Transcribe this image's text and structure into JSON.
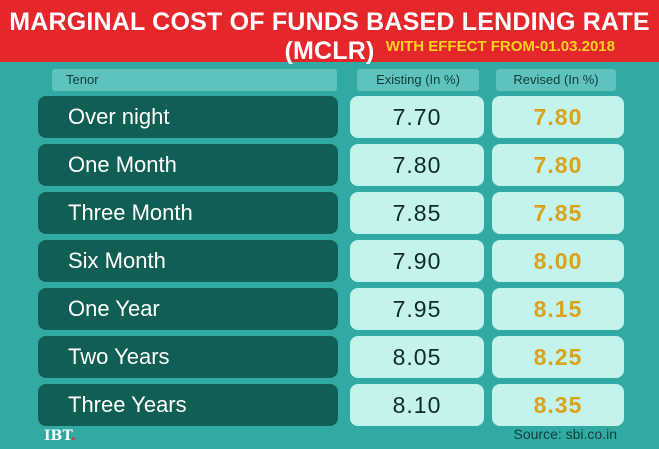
{
  "header": {
    "title": "MARGINAL COST OF FUNDS BASED LENDING RATE (MCLR)",
    "subtitle": "WITH EFFECT FROM-01.03.2018"
  },
  "chart_data": {
    "type": "table",
    "title": "MARGINAL COST OF FUNDS BASED LENDING RATE (MCLR)",
    "subtitle": "WITH EFFECT FROM-01.03.2018",
    "columns": [
      "Tenor",
      "Existing (In %)",
      "Revised (In %)"
    ],
    "rows": [
      {
        "tenor": "Over night",
        "existing": "7.70",
        "revised": "7.80"
      },
      {
        "tenor": "One Month",
        "existing": "7.80",
        "revised": "7.80"
      },
      {
        "tenor": "Three Month",
        "existing": "7.85",
        "revised": "7.85"
      },
      {
        "tenor": "Six Month",
        "existing": "7.90",
        "revised": "8.00"
      },
      {
        "tenor": "One Year",
        "existing": "7.95",
        "revised": "8.15"
      },
      {
        "tenor": "Two Years",
        "existing": "8.05",
        "revised": "8.25"
      },
      {
        "tenor": "Three Years",
        "existing": "8.10",
        "revised": "8.35"
      }
    ]
  },
  "footer": {
    "logo": "IBT",
    "logo_dot": ".",
    "source": "Source: sbi.co.in"
  },
  "colors": {
    "background": "#31aaa3",
    "banner": "#e5262a",
    "subtitle": "#ffd21f",
    "tenor_cell": "#115f54",
    "value_cell": "#c4f2ec",
    "revised_text": "#dba21d"
  }
}
